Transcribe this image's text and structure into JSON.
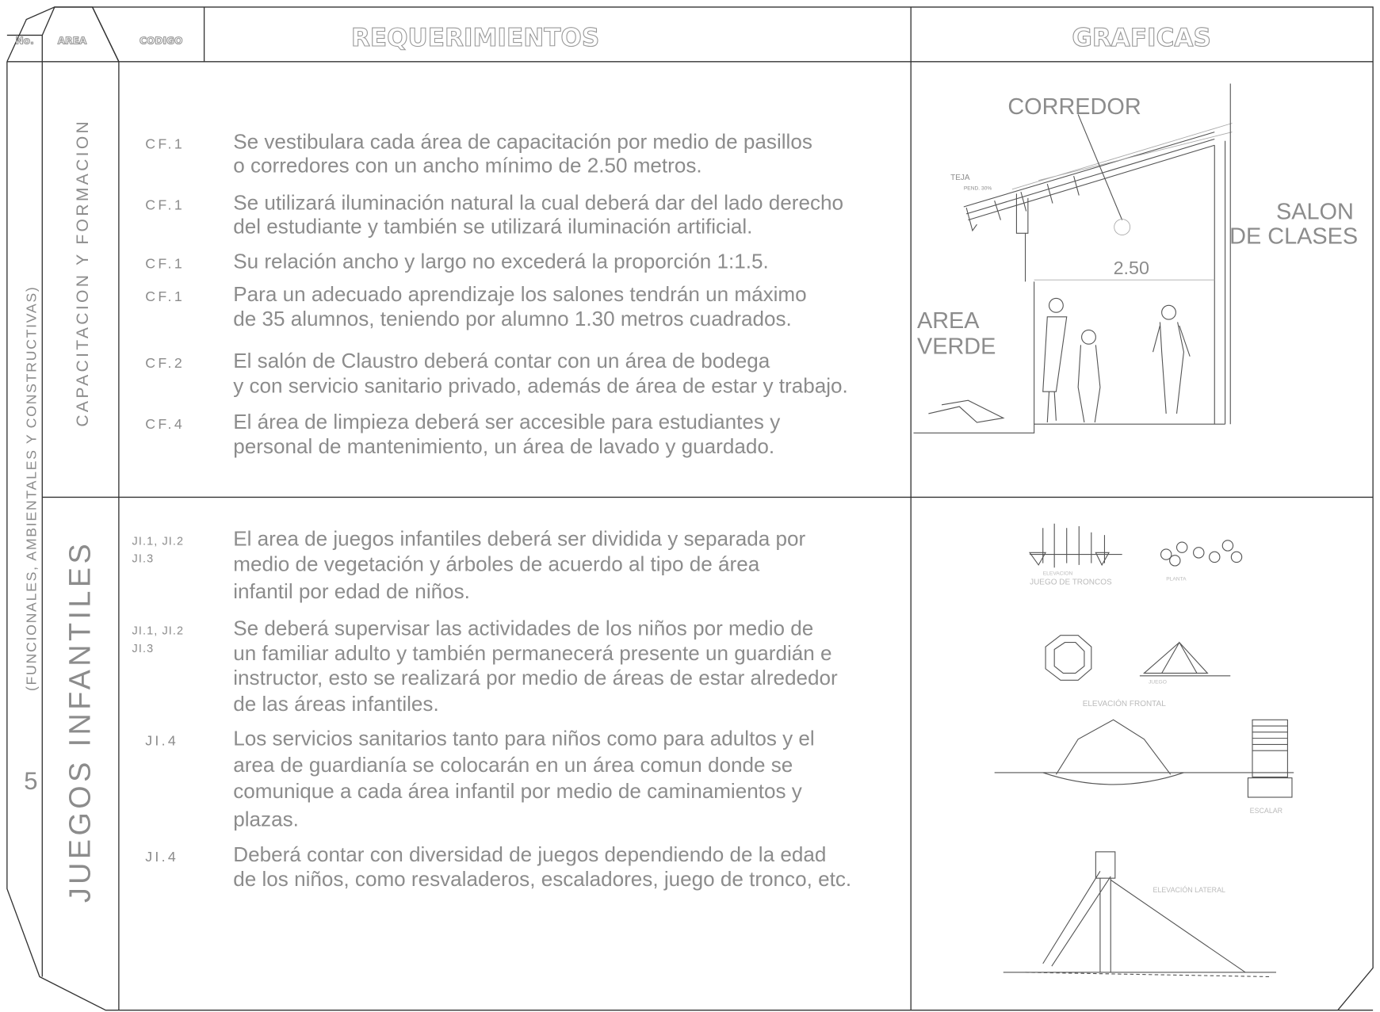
{
  "header": {
    "no": "No.",
    "area": "AREA",
    "codigo": "CODIGO",
    "requerimientos": "REQUERIMIENTOS",
    "graficas": "GRAFICAS"
  },
  "section_number": "5",
  "category": "(FUNCIONALES, AMBIENTALES Y CONSTRUCTIVAS)",
  "sections": [
    {
      "area": "CAPACITACION Y FORMACION",
      "requirements": [
        {
          "code": [
            "CF.1"
          ],
          "lines": [
            "Se vestibulara cada área de capacitación por medio de pasillos",
            "o corredores con un ancho mínimo de 2.50 metros."
          ]
        },
        {
          "code": [
            "CF.1"
          ],
          "lines": [
            "Se utilizará iluminación natural la cual deberá dar del lado derecho",
            "del estudiante y también se utilizará iluminación artificial."
          ]
        },
        {
          "code": [
            "CF.1"
          ],
          "lines": [
            "Su relación ancho y largo no excederá la proporción 1:1.5."
          ]
        },
        {
          "code": [
            "CF.1"
          ],
          "lines": [
            "Para un adecuado aprendizaje los salones tendrán un máximo",
            "de 35 alumnos, teniendo por alumno 1.30 metros cuadrados."
          ]
        },
        {
          "code": [
            "CF.2"
          ],
          "lines": [
            "El salón de Claustro deberá contar con un área de bodega",
            "y con servicio sanitario privado, además de área de estar y trabajo."
          ]
        },
        {
          "code": [
            "CF.4"
          ],
          "lines": [
            "El área de limpieza deberá ser accesible para estudiantes y",
            "personal de mantenimiento, un área de lavado y guardado."
          ]
        }
      ],
      "graphic_labels": [
        "CORREDOR",
        "TEJA",
        "PEND. 30%",
        "SALON",
        "DE CLASES",
        "2.50",
        "AREA",
        "VERDE"
      ]
    },
    {
      "area": "JUEGOS INFANTILES",
      "requirements": [
        {
          "code": [
            "JI.1, JI.2",
            "JI.3"
          ],
          "lines": [
            "El area de juegos infantiles deberá ser dividida y separada por",
            "medio de vegetación y árboles de acuerdo al tipo de área",
            "infantil por edad de niños."
          ]
        },
        {
          "code": [
            "JI.1, JI.2",
            "JI.3"
          ],
          "lines": [
            "Se deberá supervisar las actividades de los niños por medio de",
            "un familiar adulto y también permanecerá presente un guardián e",
            "instructor, esto se realizará por medio de áreas de estar alrededor",
            "de las áreas infantiles."
          ]
        },
        {
          "code": [
            "JI.4"
          ],
          "lines": [
            "Los servicios sanitarios tanto para niños como para adultos y el",
            "area de guardianía se colocarán en un área comun donde se",
            "comunique a cada área infantil por medio de caminamientos y",
            "plazas."
          ]
        },
        {
          "code": [
            "JI.4"
          ],
          "lines": [
            "Deberá contar con diversidad de juegos dependiendo de la edad",
            "de los niños, como resvaladeros, escaladores, juego de tronco, etc."
          ]
        }
      ],
      "graphic_labels": [
        "ELEVACION",
        "JUEGO DE TRONCOS",
        "PLANTA",
        "JUEGO",
        "ELEVACIÓN FRONTAL",
        "ESCALAR",
        "ELEVACIÓN LATERAL"
      ]
    }
  ]
}
